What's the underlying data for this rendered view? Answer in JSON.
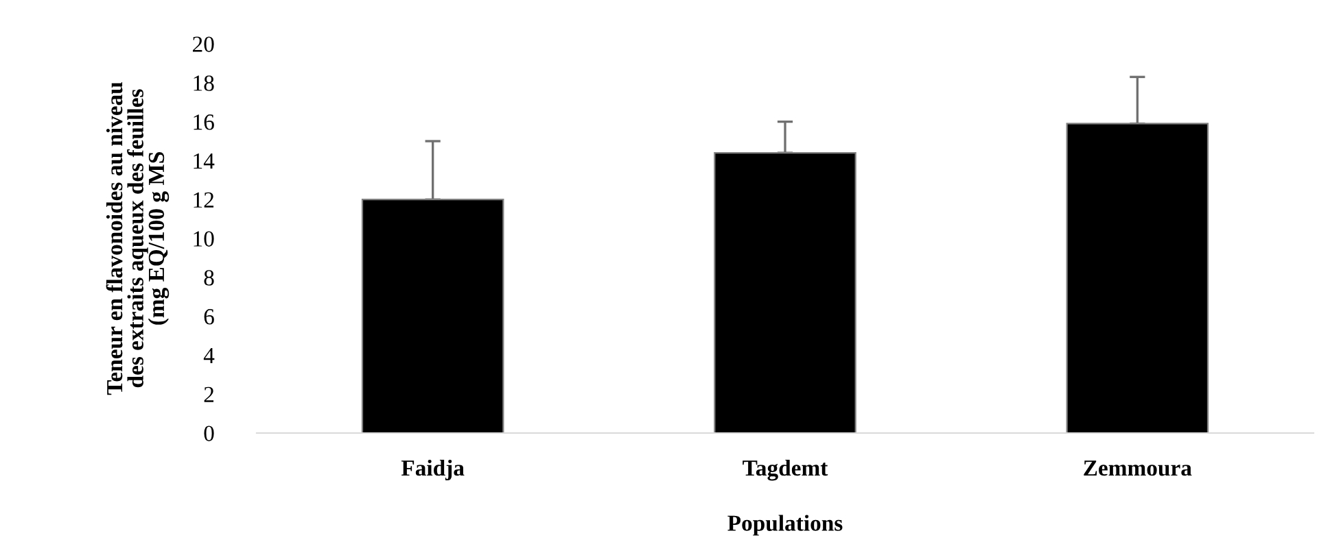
{
  "chart_data": {
    "type": "bar",
    "xlabel": "Populations",
    "ylabel": "Teneur en flavonoides au niveau\ndes extraits aqueux des feuilles\n(mg EQ/100 g MS",
    "categories": [
      "Faidja",
      "Tagdemt",
      "Zemmoura"
    ],
    "values": [
      12,
      14.4,
      15.9
    ],
    "errors": [
      [
        12,
        15
      ],
      [
        14.4,
        16
      ],
      [
        15.9,
        18.3
      ]
    ],
    "color": "#000000",
    "ylim": [
      0,
      20
    ],
    "yticks": [
      0,
      2,
      4,
      6,
      8,
      10,
      12,
      14,
      16,
      18,
      20
    ],
    "grid": false,
    "legend": false
  }
}
